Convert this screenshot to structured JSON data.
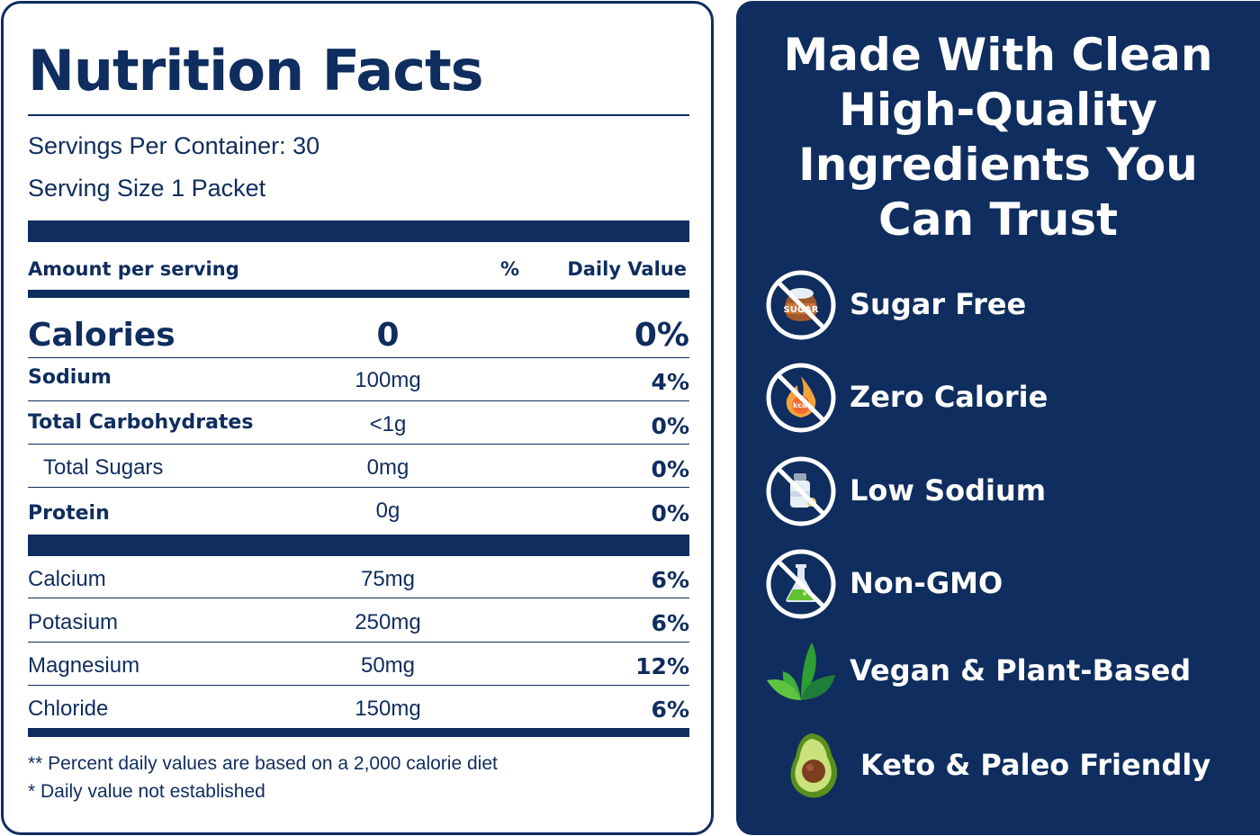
{
  "nutrition": {
    "title": "Nutrition Facts",
    "servings_per_container": "Servings Per Container: 30",
    "serving_size": "Serving Size 1 Packet",
    "header": {
      "amount": "Amount per serving",
      "percent": "%",
      "daily_value": "Daily Value"
    },
    "calories": {
      "name": "Calories",
      "amount": "0",
      "dv": "0%"
    },
    "macros": [
      {
        "name": "Sodium",
        "amount": "100mg",
        "dv": "4%"
      },
      {
        "name": "Total Carbohydrates",
        "amount": "<1g",
        "dv": "0%"
      },
      {
        "name": "Total Sugars",
        "amount": "0mg",
        "dv": "0%"
      },
      {
        "name": "Protein",
        "amount": "0g",
        "dv": "0%"
      }
    ],
    "minerals": [
      {
        "name": "Calcium",
        "amount": "75mg",
        "dv": "6%"
      },
      {
        "name": "Potasium",
        "amount": "250mg",
        "dv": "6%"
      },
      {
        "name": "Magnesium",
        "amount": "50mg",
        "dv": "12%"
      },
      {
        "name": "Chloride",
        "amount": "150mg",
        "dv": "6%"
      }
    ],
    "footnotes": [
      "** Percent daily values are based on a 2,000 calorie diet",
      "* Daily value not established"
    ]
  },
  "promo": {
    "headline": [
      "Made With Clean",
      "High-Quality",
      "Ingredients You",
      "Can Trust"
    ],
    "features": [
      {
        "label": "Sugar Free",
        "icon": "sugar-free-icon"
      },
      {
        "label": "Zero Calorie",
        "icon": "zero-calorie-icon"
      },
      {
        "label": "Low Sodium",
        "icon": "low-sodium-icon"
      },
      {
        "label": "Non-GMO",
        "icon": "non-gmo-icon"
      },
      {
        "label": "Vegan & Plant-Based",
        "icon": "leaves-icon"
      },
      {
        "label": "Keto & Paleo Friendly",
        "icon": "avocado-icon"
      }
    ],
    "sugar_bag_text": "SUGAR",
    "kcal_text": "kcal"
  },
  "colors": {
    "navy": "#0f2d5e",
    "white": "#ffffff"
  }
}
